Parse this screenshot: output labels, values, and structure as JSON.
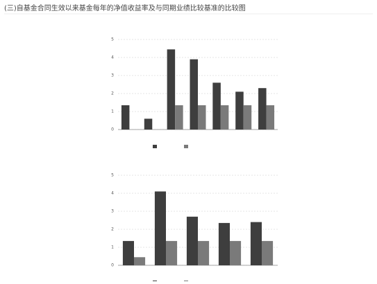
{
  "header": {
    "title": "(三)自基金合同生效以来基金每年的净值收益率及与同期业绩比较基准的比较图"
  },
  "chart_data": [
    {
      "type": "bar",
      "ylim": [
        0,
        5
      ],
      "yticks": [
        0,
        1,
        2,
        3,
        4,
        5
      ],
      "grid": true,
      "series": [
        {
          "color": "#3e3e3e",
          "values": [
            1.35,
            0.6,
            4.45,
            3.9,
            2.6,
            2.1,
            2.3
          ]
        },
        {
          "color": "#7a7a7a",
          "values": [
            null,
            null,
            1.35,
            1.35,
            1.35,
            1.35,
            1.35
          ]
        }
      ]
    },
    {
      "type": "bar",
      "ylim": [
        0,
        5
      ],
      "yticks": [
        0,
        1,
        2,
        3,
        4,
        5
      ],
      "grid": true,
      "series": [
        {
          "color": "#3e3e3e",
          "values": [
            1.35,
            4.1,
            2.7,
            2.35,
            2.4
          ]
        },
        {
          "color": "#7a7a7a",
          "values": [
            0.45,
            1.35,
            1.35,
            1.35,
            1.35
          ]
        }
      ]
    }
  ]
}
